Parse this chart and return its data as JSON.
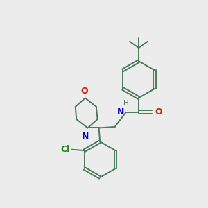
{
  "bg_color": "#ececec",
  "bond_color": "#4a7a5a",
  "bond_width": 1.4,
  "N_color": "#0000cc",
  "O_color": "#cc2200",
  "Cl_color": "#228822",
  "text_fontsize": 8.5,
  "figsize": [
    3.0,
    3.0
  ],
  "dpi": 100,
  "xlim": [
    0,
    10
  ],
  "ylim": [
    0,
    10
  ]
}
